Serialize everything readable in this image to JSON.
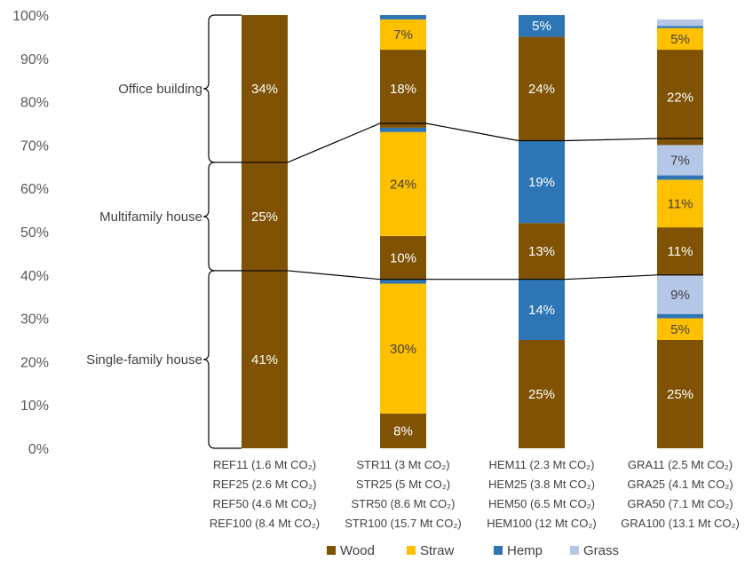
{
  "chart_data": {
    "type": "bar",
    "stacked": true,
    "title": "",
    "xlabel": "",
    "ylabel": "",
    "ylim": [
      0,
      100
    ],
    "y_ticks": [
      "0%",
      "10%",
      "20%",
      "30%",
      "40%",
      "50%",
      "60%",
      "70%",
      "80%",
      "90%",
      "100%"
    ],
    "grid": false,
    "legend_position": "bottom",
    "colors": {
      "Wood": "#7f5204",
      "Straw": "#ffc000",
      "Hemp": "#2e75b6",
      "Grass": "#b4c7e7"
    },
    "categories": [
      {
        "lines": [
          "REF11 (1.6 Mt CO₂)",
          "REF25 (2.6 Mt CO₂)",
          "REF50 (4.6 Mt CO₂)",
          "REF100 (8.4 Mt CO₂)"
        ]
      },
      {
        "lines": [
          "STR11 (3 Mt CO₂)",
          "STR25 (5 Mt CO₂)",
          "STR50 (8.6 Mt CO₂)",
          "STR100 (15.7 Mt CO₂)"
        ]
      },
      {
        "lines": [
          "HEM11 (2.3 Mt CO₂)",
          "HEM25 (3.8 Mt CO₂)",
          "HEM50 (6.5 Mt CO₂)",
          "HEM100 (12 Mt CO₂)"
        ]
      },
      {
        "lines": [
          "GRA11 (2.5 Mt CO₂)",
          "GRA25 (4.1 Mt CO₂)",
          "GRA50 (7.1 Mt CO₂)",
          "GRA100 (13.1 Mt CO₂)"
        ]
      }
    ],
    "bars": [
      [
        {
          "m": "Wood",
          "v": 41,
          "label": "41%"
        },
        {
          "m": "Wood",
          "v": 25,
          "label": "25%"
        },
        {
          "m": "Wood",
          "v": 34,
          "label": "34%"
        }
      ],
      [
        {
          "m": "Wood",
          "v": 8,
          "label": "8%"
        },
        {
          "m": "Straw",
          "v": 30,
          "label": "30%"
        },
        {
          "m": "Hemp",
          "v": 1,
          "label": ""
        },
        {
          "m": "Wood",
          "v": 10,
          "label": "10%"
        },
        {
          "m": "Straw",
          "v": 24,
          "label": "24%"
        },
        {
          "m": "Hemp",
          "v": 1,
          "label": ""
        },
        {
          "m": "Wood",
          "v": 18,
          "label": "18%"
        },
        {
          "m": "Straw",
          "v": 7,
          "label": "7%"
        },
        {
          "m": "Hemp",
          "v": 1,
          "label": ""
        }
      ],
      [
        {
          "m": "Wood",
          "v": 25,
          "label": "25%"
        },
        {
          "m": "Hemp",
          "v": 14,
          "label": "14%"
        },
        {
          "m": "Wood",
          "v": 13,
          "label": "13%"
        },
        {
          "m": "Hemp",
          "v": 19,
          "label": "19%"
        },
        {
          "m": "Wood",
          "v": 24,
          "label": "24%"
        },
        {
          "m": "Hemp",
          "v": 5,
          "label": "5%"
        }
      ],
      [
        {
          "m": "Wood",
          "v": 25,
          "label": "25%"
        },
        {
          "m": "Straw",
          "v": 5,
          "label": "5%"
        },
        {
          "m": "Hemp",
          "v": 1,
          "label": ""
        },
        {
          "m": "Grass",
          "v": 9,
          "label": "9%"
        },
        {
          "m": "Wood",
          "v": 11,
          "label": "11%"
        },
        {
          "m": "Straw",
          "v": 11,
          "label": "11%"
        },
        {
          "m": "Hemp",
          "v": 1,
          "label": ""
        },
        {
          "m": "Grass",
          "v": 7,
          "label": "7%"
        },
        {
          "m": "Wood",
          "v": 22,
          "label": "22%"
        },
        {
          "m": "Straw",
          "v": 5,
          "label": "5%"
        },
        {
          "m": "Hemp",
          "v": 0.5,
          "label": ""
        },
        {
          "m": "Grass",
          "v": 1.5,
          "label": ""
        }
      ]
    ],
    "building_types": [
      {
        "name": "Single-family house",
        "from": 0,
        "to": 41
      },
      {
        "name": "Multifamily house",
        "from": 41,
        "to": 66
      },
      {
        "name": "Office building",
        "from": 66,
        "to": 100
      }
    ],
    "boundaries": [
      [
        41,
        39,
        39,
        40
      ],
      [
        66,
        75,
        71,
        71.5
      ]
    ],
    "legend": [
      "Wood",
      "Straw",
      "Hemp",
      "Grass"
    ]
  }
}
